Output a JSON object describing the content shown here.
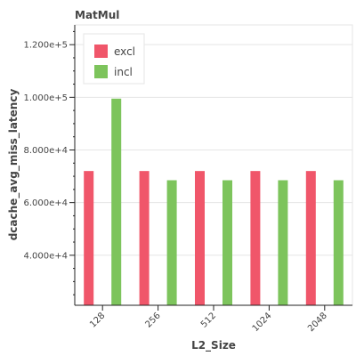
{
  "chart_data": {
    "type": "bar",
    "title": "MatMul",
    "xlabel": "L2_Size",
    "ylabel": "dcache_avg_miss_latency",
    "categories": [
      "128",
      "256",
      "512",
      "1024",
      "2048"
    ],
    "series": [
      {
        "name": "excl",
        "color": "#f0566a",
        "values": [
          72000,
          72000,
          72000,
          72000,
          72000
        ]
      },
      {
        "name": "incl",
        "color": "#7dc45c",
        "values": [
          99500,
          68500,
          68500,
          68500,
          68500
        ]
      }
    ],
    "ylim": [
      21000,
      127500
    ],
    "yticks": [
      40000,
      60000,
      80000,
      100000,
      120000
    ],
    "ytick_labels": [
      "4.000e+4",
      "6.000e+4",
      "8.000e+4",
      "1.000e+5",
      "1.200e+5"
    ],
    "grid": true,
    "legend_position": "top-left"
  }
}
